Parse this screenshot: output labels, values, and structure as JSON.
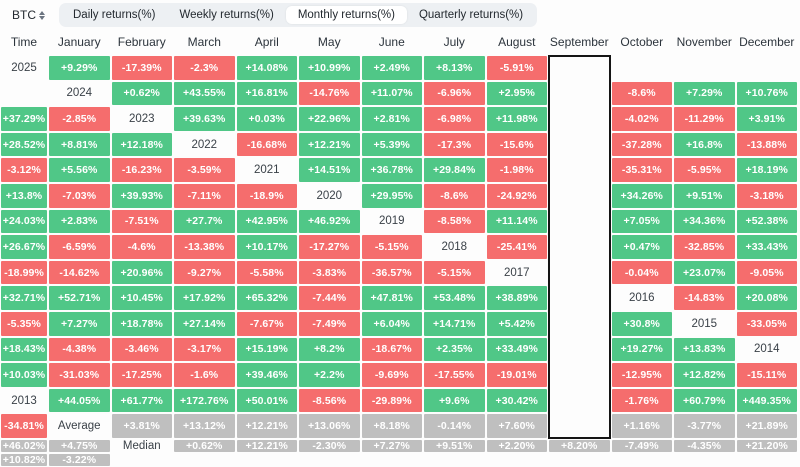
{
  "colors": {
    "positive": "#50c787",
    "negative": "#f56d6d",
    "neutral": "#bfbfbf",
    "highlight_border": "#151515",
    "tabbar_bg": "#edf0f3",
    "active_tab_bg": "#ffffff"
  },
  "controls": {
    "symbol_select": {
      "value": "BTC",
      "icon": "up-down-caret"
    },
    "tabs": [
      {
        "label": "Daily returns(%)",
        "active": false
      },
      {
        "label": "Weekly returns(%)",
        "active": false
      },
      {
        "label": "Monthly returns(%)",
        "active": true
      },
      {
        "label": "Quarterly returns(%)",
        "active": false
      }
    ]
  },
  "chart_data": {
    "type": "heatmap",
    "title": "BTC Monthly returns(%)",
    "columns": [
      "Time",
      "January",
      "February",
      "March",
      "April",
      "May",
      "June",
      "July",
      "August",
      "September",
      "October",
      "November",
      "December"
    ],
    "highlighted_column": "September",
    "rows": [
      {
        "label": "2025",
        "type": "year",
        "values": [
          "+9.29%",
          "-17.39%",
          "-2.3%",
          "+14.08%",
          "+10.99%",
          "+2.49%",
          "+8.13%",
          "-5.91%",
          null,
          null,
          null,
          null
        ]
      },
      {
        "label": "2024",
        "type": "year",
        "values": [
          "+0.62%",
          "+43.55%",
          "+16.81%",
          "-14.76%",
          "+11.07%",
          "-6.96%",
          "+2.95%",
          "-8.6%",
          "+7.29%",
          "+10.76%",
          "+37.29%",
          "-2.85%"
        ]
      },
      {
        "label": "2023",
        "type": "year",
        "values": [
          "+39.63%",
          "+0.03%",
          "+22.96%",
          "+2.81%",
          "-6.98%",
          "+11.98%",
          "-4.02%",
          "-11.29%",
          "+3.91%",
          "+28.52%",
          "+8.81%",
          "+12.18%"
        ]
      },
      {
        "label": "2022",
        "type": "year",
        "values": [
          "-16.68%",
          "+12.21%",
          "+5.39%",
          "-17.3%",
          "-15.6%",
          "-37.28%",
          "+16.8%",
          "-13.88%",
          "-3.12%",
          "+5.56%",
          "-16.23%",
          "-3.59%"
        ]
      },
      {
        "label": "2021",
        "type": "year",
        "values": [
          "+14.51%",
          "+36.78%",
          "+29.84%",
          "-1.98%",
          "-35.31%",
          "-5.95%",
          "+18.19%",
          "+13.8%",
          "-7.03%",
          "+39.93%",
          "-7.11%",
          "-18.9%"
        ]
      },
      {
        "label": "2020",
        "type": "year",
        "values": [
          "+29.95%",
          "-8.6%",
          "-24.92%",
          "+34.26%",
          "+9.51%",
          "-3.18%",
          "+24.03%",
          "+2.83%",
          "-7.51%",
          "+27.7%",
          "+42.95%",
          "+46.92%"
        ]
      },
      {
        "label": "2019",
        "type": "year",
        "values": [
          "-8.58%",
          "+11.14%",
          "+7.05%",
          "+34.36%",
          "+52.38%",
          "+26.67%",
          "-6.59%",
          "-4.6%",
          "-13.38%",
          "+10.17%",
          "-17.27%",
          "-5.15%"
        ]
      },
      {
        "label": "2018",
        "type": "year",
        "values": [
          "-25.41%",
          "+0.47%",
          "-32.85%",
          "+33.43%",
          "-18.99%",
          "-14.62%",
          "+20.96%",
          "-9.27%",
          "-5.58%",
          "-3.83%",
          "-36.57%",
          "-5.15%"
        ]
      },
      {
        "label": "2017",
        "type": "year",
        "values": [
          "-0.04%",
          "+23.07%",
          "-9.05%",
          "+32.71%",
          "+52.71%",
          "+10.45%",
          "+17.92%",
          "+65.32%",
          "-7.44%",
          "+47.81%",
          "+53.48%",
          "+38.89%"
        ]
      },
      {
        "label": "2016",
        "type": "year",
        "values": [
          "-14.83%",
          "+20.08%",
          "-5.35%",
          "+7.27%",
          "+18.78%",
          "+27.14%",
          "-7.67%",
          "-7.49%",
          "+6.04%",
          "+14.71%",
          "+5.42%",
          "+30.8%"
        ]
      },
      {
        "label": "2015",
        "type": "year",
        "values": [
          "-33.05%",
          "+18.43%",
          "-4.38%",
          "-3.46%",
          "-3.17%",
          "+15.19%",
          "+8.2%",
          "-18.67%",
          "+2.35%",
          "+33.49%",
          "+19.27%",
          "+13.83%"
        ]
      },
      {
        "label": "2014",
        "type": "year",
        "values": [
          "+10.03%",
          "-31.03%",
          "-17.25%",
          "-1.6%",
          "+39.46%",
          "+2.2%",
          "-9.69%",
          "-17.55%",
          "-19.01%",
          "-12.95%",
          "+12.82%",
          "-15.11%"
        ]
      },
      {
        "label": "2013",
        "type": "year",
        "values": [
          "+44.05%",
          "+61.77%",
          "+172.76%",
          "+50.01%",
          "-8.56%",
          "-29.89%",
          "+9.6%",
          "+30.42%",
          "-1.76%",
          "+60.79%",
          "+449.35%",
          "-34.81%"
        ]
      },
      {
        "label": "Average",
        "type": "summary",
        "values": [
          "+3.81%",
          "+13.12%",
          "+12.21%",
          "+13.06%",
          "+8.18%",
          "-0.14%",
          "+7.60%",
          "+1.16%",
          "-3.77%",
          "+21.89%",
          "+46.02%",
          "+4.75%"
        ]
      },
      {
        "label": "Median",
        "type": "summary",
        "values": [
          "+0.62%",
          "+12.21%",
          "-2.30%",
          "+7.27%",
          "+9.51%",
          "+2.20%",
          "+8.20%",
          "-7.49%",
          "-4.35%",
          "+21.20%",
          "+10.82%",
          "-3.22%"
        ]
      }
    ]
  }
}
